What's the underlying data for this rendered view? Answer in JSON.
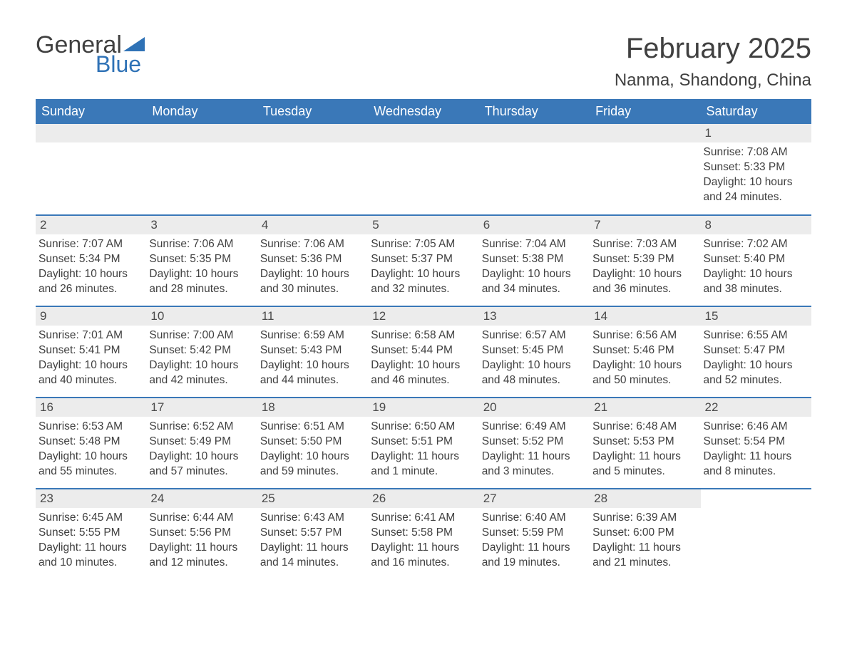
{
  "logo": {
    "general": "General",
    "blue": "Blue",
    "accent_color": "#2f72b6"
  },
  "title": "February 2025",
  "location": "Nanma, Shandong, China",
  "colors": {
    "header_bg": "#3a78b8",
    "header_text": "#ffffff",
    "daynum_bg": "#ececec",
    "text": "#404040",
    "sep": "#3a78b8"
  },
  "days_of_week": [
    "Sunday",
    "Monday",
    "Tuesday",
    "Wednesday",
    "Thursday",
    "Friday",
    "Saturday"
  ],
  "weeks": [
    [
      {
        "empty": true
      },
      {
        "empty": true
      },
      {
        "empty": true
      },
      {
        "empty": true
      },
      {
        "empty": true
      },
      {
        "empty": true
      },
      {
        "n": "1",
        "sr": "Sunrise: 7:08 AM",
        "ss": "Sunset: 5:33 PM",
        "dl": "Daylight: 10 hours and 24 minutes."
      }
    ],
    [
      {
        "n": "2",
        "sr": "Sunrise: 7:07 AM",
        "ss": "Sunset: 5:34 PM",
        "dl": "Daylight: 10 hours and 26 minutes."
      },
      {
        "n": "3",
        "sr": "Sunrise: 7:06 AM",
        "ss": "Sunset: 5:35 PM",
        "dl": "Daylight: 10 hours and 28 minutes."
      },
      {
        "n": "4",
        "sr": "Sunrise: 7:06 AM",
        "ss": "Sunset: 5:36 PM",
        "dl": "Daylight: 10 hours and 30 minutes."
      },
      {
        "n": "5",
        "sr": "Sunrise: 7:05 AM",
        "ss": "Sunset: 5:37 PM",
        "dl": "Daylight: 10 hours and 32 minutes."
      },
      {
        "n": "6",
        "sr": "Sunrise: 7:04 AM",
        "ss": "Sunset: 5:38 PM",
        "dl": "Daylight: 10 hours and 34 minutes."
      },
      {
        "n": "7",
        "sr": "Sunrise: 7:03 AM",
        "ss": "Sunset: 5:39 PM",
        "dl": "Daylight: 10 hours and 36 minutes."
      },
      {
        "n": "8",
        "sr": "Sunrise: 7:02 AM",
        "ss": "Sunset: 5:40 PM",
        "dl": "Daylight: 10 hours and 38 minutes."
      }
    ],
    [
      {
        "n": "9",
        "sr": "Sunrise: 7:01 AM",
        "ss": "Sunset: 5:41 PM",
        "dl": "Daylight: 10 hours and 40 minutes."
      },
      {
        "n": "10",
        "sr": "Sunrise: 7:00 AM",
        "ss": "Sunset: 5:42 PM",
        "dl": "Daylight: 10 hours and 42 minutes."
      },
      {
        "n": "11",
        "sr": "Sunrise: 6:59 AM",
        "ss": "Sunset: 5:43 PM",
        "dl": "Daylight: 10 hours and 44 minutes."
      },
      {
        "n": "12",
        "sr": "Sunrise: 6:58 AM",
        "ss": "Sunset: 5:44 PM",
        "dl": "Daylight: 10 hours and 46 minutes."
      },
      {
        "n": "13",
        "sr": "Sunrise: 6:57 AM",
        "ss": "Sunset: 5:45 PM",
        "dl": "Daylight: 10 hours and 48 minutes."
      },
      {
        "n": "14",
        "sr": "Sunrise: 6:56 AM",
        "ss": "Sunset: 5:46 PM",
        "dl": "Daylight: 10 hours and 50 minutes."
      },
      {
        "n": "15",
        "sr": "Sunrise: 6:55 AM",
        "ss": "Sunset: 5:47 PM",
        "dl": "Daylight: 10 hours and 52 minutes."
      }
    ],
    [
      {
        "n": "16",
        "sr": "Sunrise: 6:53 AM",
        "ss": "Sunset: 5:48 PM",
        "dl": "Daylight: 10 hours and 55 minutes."
      },
      {
        "n": "17",
        "sr": "Sunrise: 6:52 AM",
        "ss": "Sunset: 5:49 PM",
        "dl": "Daylight: 10 hours and 57 minutes."
      },
      {
        "n": "18",
        "sr": "Sunrise: 6:51 AM",
        "ss": "Sunset: 5:50 PM",
        "dl": "Daylight: 10 hours and 59 minutes."
      },
      {
        "n": "19",
        "sr": "Sunrise: 6:50 AM",
        "ss": "Sunset: 5:51 PM",
        "dl": "Daylight: 11 hours and 1 minute."
      },
      {
        "n": "20",
        "sr": "Sunrise: 6:49 AM",
        "ss": "Sunset: 5:52 PM",
        "dl": "Daylight: 11 hours and 3 minutes."
      },
      {
        "n": "21",
        "sr": "Sunrise: 6:48 AM",
        "ss": "Sunset: 5:53 PM",
        "dl": "Daylight: 11 hours and 5 minutes."
      },
      {
        "n": "22",
        "sr": "Sunrise: 6:46 AM",
        "ss": "Sunset: 5:54 PM",
        "dl": "Daylight: 11 hours and 8 minutes."
      }
    ],
    [
      {
        "n": "23",
        "sr": "Sunrise: 6:45 AM",
        "ss": "Sunset: 5:55 PM",
        "dl": "Daylight: 11 hours and 10 minutes."
      },
      {
        "n": "24",
        "sr": "Sunrise: 6:44 AM",
        "ss": "Sunset: 5:56 PM",
        "dl": "Daylight: 11 hours and 12 minutes."
      },
      {
        "n": "25",
        "sr": "Sunrise: 6:43 AM",
        "ss": "Sunset: 5:57 PM",
        "dl": "Daylight: 11 hours and 14 minutes."
      },
      {
        "n": "26",
        "sr": "Sunrise: 6:41 AM",
        "ss": "Sunset: 5:58 PM",
        "dl": "Daylight: 11 hours and 16 minutes."
      },
      {
        "n": "27",
        "sr": "Sunrise: 6:40 AM",
        "ss": "Sunset: 5:59 PM",
        "dl": "Daylight: 11 hours and 19 minutes."
      },
      {
        "n": "28",
        "sr": "Sunrise: 6:39 AM",
        "ss": "Sunset: 6:00 PM",
        "dl": "Daylight: 11 hours and 21 minutes."
      },
      {
        "empty": true,
        "trailing": true
      }
    ]
  ]
}
